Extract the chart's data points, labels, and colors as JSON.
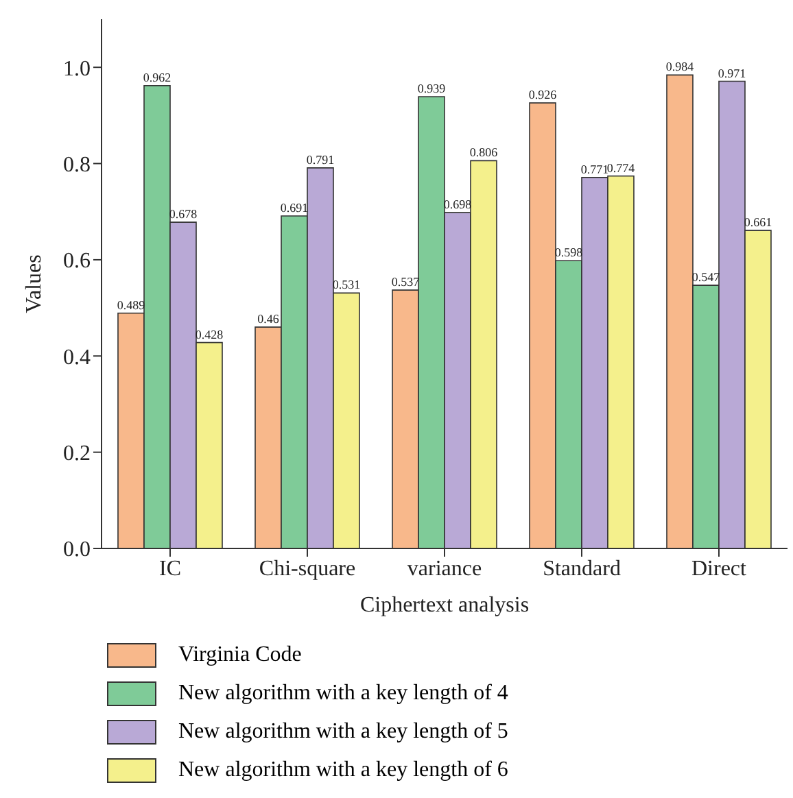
{
  "chart_data": {
    "type": "bar",
    "xlabel": "Ciphertext analysis",
    "ylabel": "Values",
    "categories": [
      "IC",
      "Chi-square",
      "variance",
      "Standard",
      "Direct"
    ],
    "series": [
      {
        "name": "Virginia Code",
        "color": "#f8b88b",
        "values": [
          0.489,
          0.46,
          0.537,
          0.926,
          0.984
        ]
      },
      {
        "name": "New algorithm with a key length of 4",
        "color": "#7fcb98",
        "values": [
          0.962,
          0.691,
          0.939,
          0.598,
          0.547
        ]
      },
      {
        "name": "New algorithm with a key length of 5",
        "color": "#b9a9d6",
        "values": [
          0.678,
          0.791,
          0.698,
          0.771,
          0.971
        ]
      },
      {
        "name": "New algorithm with a key length of 6",
        "color": "#f4f08c",
        "values": [
          0.428,
          0.531,
          0.806,
          0.774,
          0.661
        ]
      }
    ],
    "ylim": [
      0,
      1.1
    ],
    "yticks": [
      {
        "value": 0,
        "label": "0.0"
      },
      {
        "value": 0.2,
        "label": "0.2"
      },
      {
        "value": 0.4,
        "label": "0.4"
      },
      {
        "value": 0.6,
        "label": "0.6"
      },
      {
        "value": 0.8,
        "label": "0.8"
      },
      {
        "value": 1,
        "label": "1.0"
      }
    ],
    "data_labels": true,
    "grid": false,
    "legend": "bottom"
  }
}
